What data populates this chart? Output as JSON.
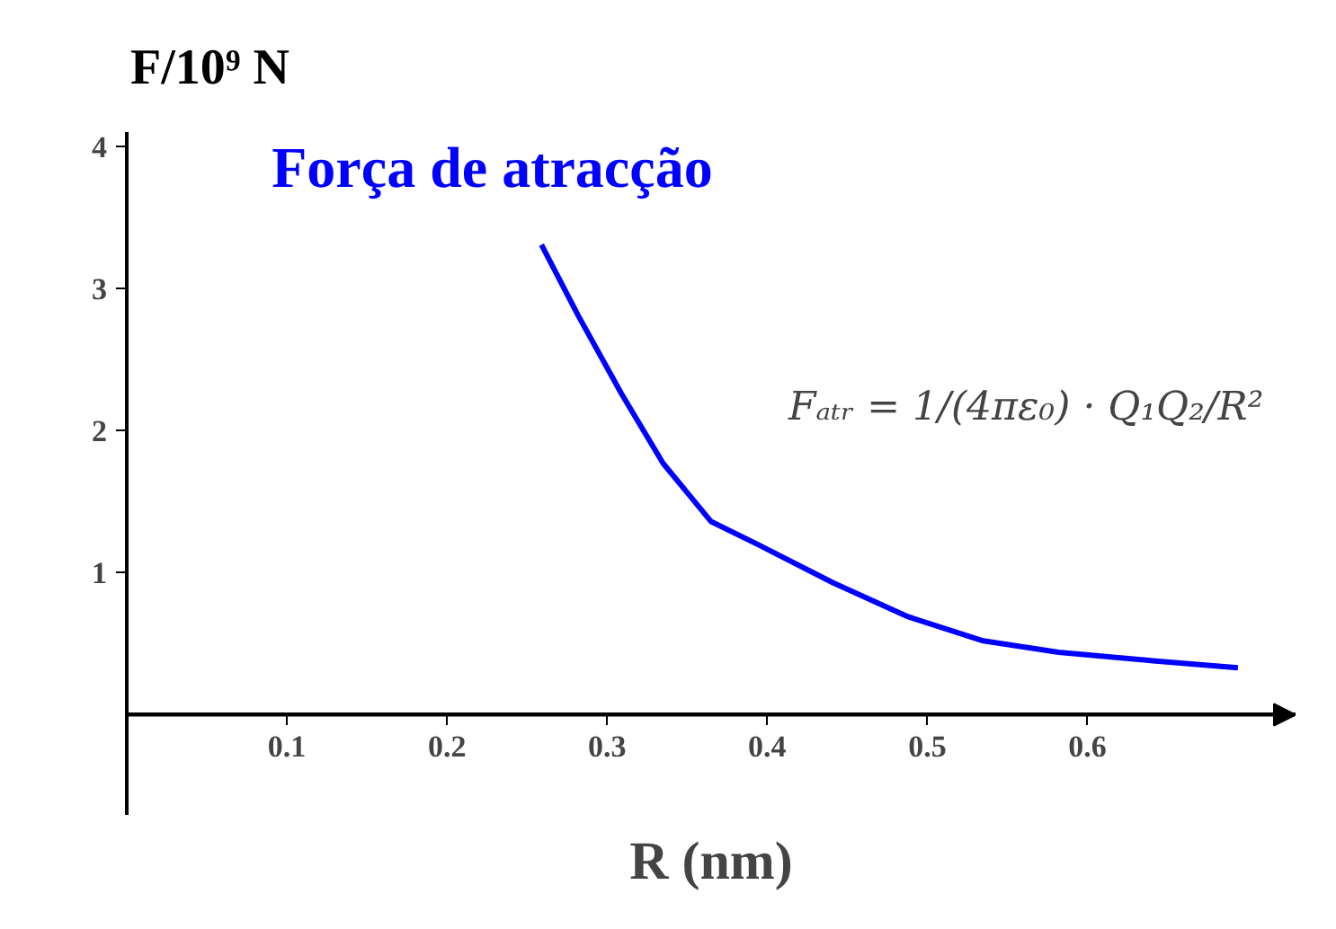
{
  "chart_data": {
    "type": "line",
    "xlabel": "R (nm)",
    "ylabel": "F/10⁹ N",
    "x": [
      0.259,
      0.282,
      0.309,
      0.335,
      0.365,
      0.394,
      0.441,
      0.488,
      0.535,
      0.582,
      0.641,
      0.694
    ],
    "series": [
      {
        "name": "Força de atracção",
        "color": "#0000ff",
        "values": [
          3.31,
          2.81,
          2.26,
          1.77,
          1.36,
          1.2,
          0.93,
          0.69,
          0.52,
          0.44,
          0.38,
          0.33
        ]
      }
    ],
    "annotations": [
      "Fₐₜᵣ = 1/(4πε₀) · Q₁Q₂/R²"
    ],
    "xlim": [
      0,
      0.73
    ],
    "ylim": [
      -0.7,
      4.1
    ],
    "xticks": [
      0.1,
      0.2,
      0.3,
      0.4,
      0.5,
      0.6
    ],
    "yticks": [
      1,
      2,
      3,
      4
    ],
    "grid": false,
    "marker": "none",
    "line_style": "solid"
  }
}
